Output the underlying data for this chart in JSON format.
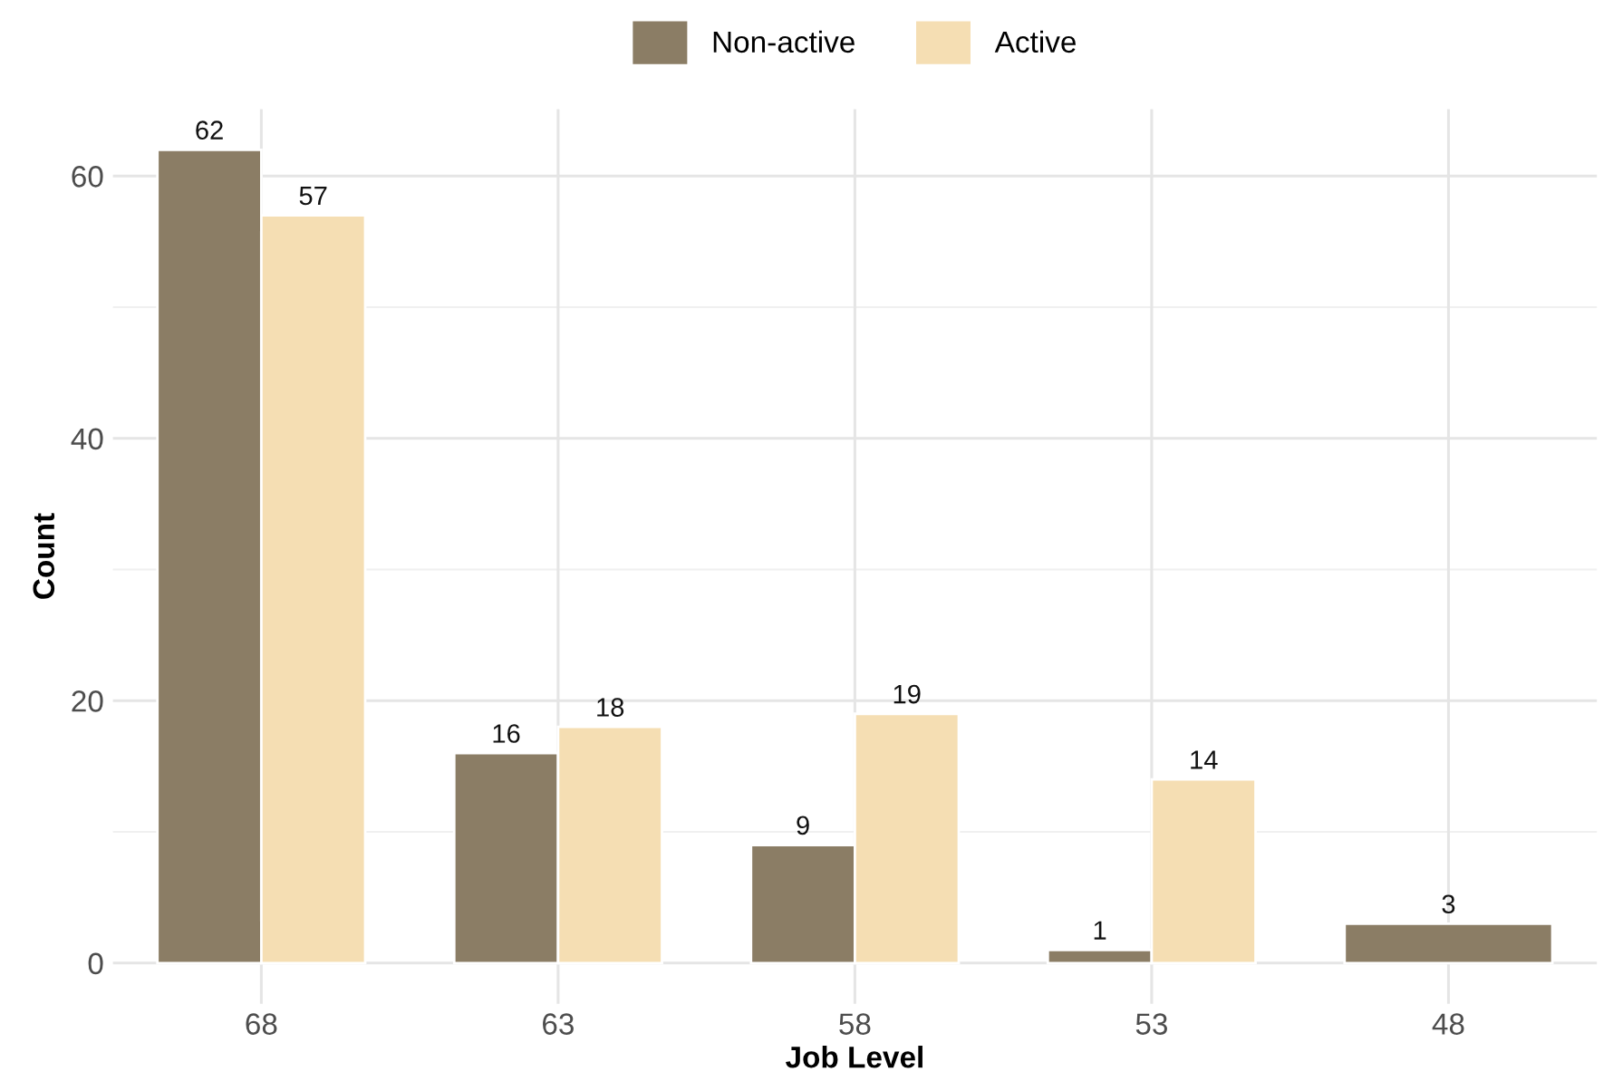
{
  "chart_data": {
    "type": "bar",
    "xlabel": "Job Level",
    "ylabel": "Count",
    "categories": [
      "68",
      "63",
      "58",
      "53",
      "48"
    ],
    "series": [
      {
        "name": "Non-active",
        "color": "#8b7d65",
        "values": [
          62,
          16,
          9,
          1,
          3
        ]
      },
      {
        "name": "Active",
        "color": "#f5deb3",
        "values": [
          57,
          18,
          19,
          14,
          null
        ]
      }
    ],
    "ylim": [
      -3.1,
      65.1
    ],
    "yticks": [
      0,
      {
        "value": 10,
        "label": null
      },
      20,
      {
        "value": 30,
        "label": null
      },
      40,
      {
        "value": 50,
        "label": null
      },
      60
    ],
    "grid": true,
    "legend": "top",
    "data_labels": true
  }
}
